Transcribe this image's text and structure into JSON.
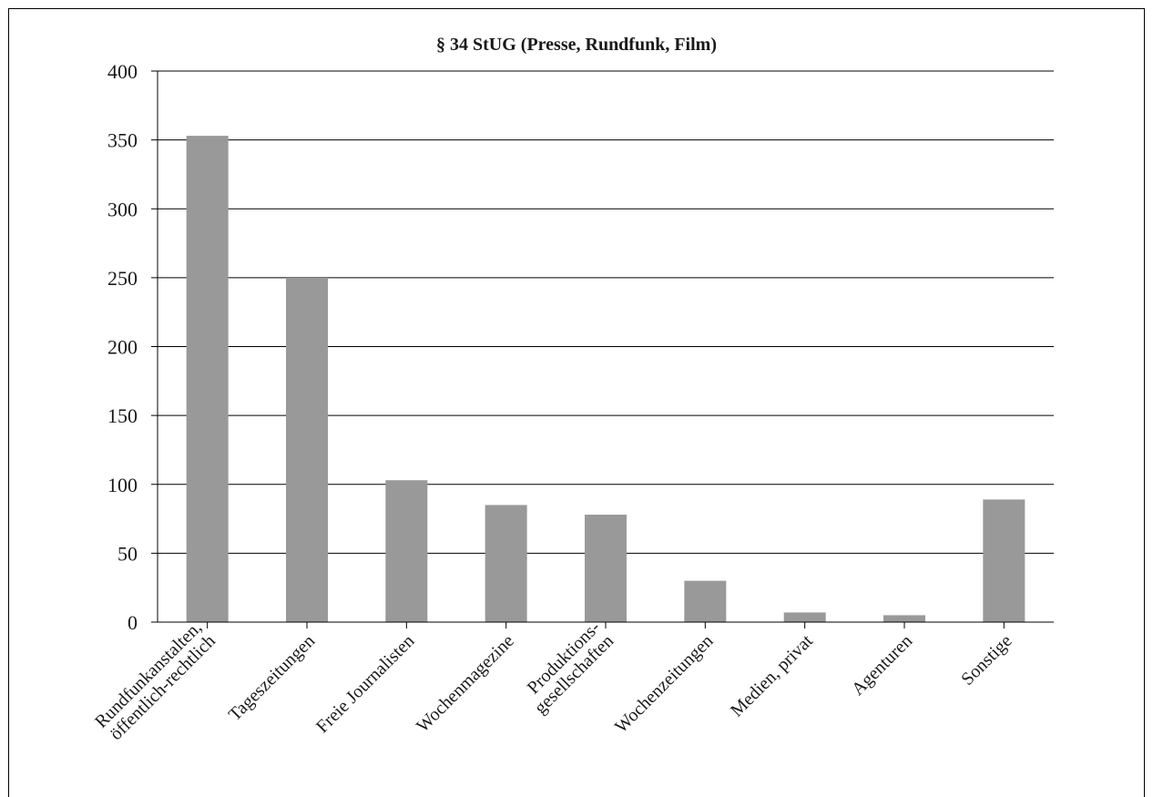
{
  "chart_data": {
    "type": "bar",
    "title": "§ 34 StUG (Presse, Rundfunk, Film)",
    "xlabel": "",
    "ylabel": "",
    "ylim": [
      0,
      400
    ],
    "yticks": [
      0,
      50,
      100,
      150,
      200,
      250,
      300,
      350,
      400
    ],
    "grid": true,
    "categories": [
      [
        "Rundfunkanstalten,",
        "öffentlich-rechtlich"
      ],
      [
        "Tageszeitungen"
      ],
      [
        "Freie Journalisten"
      ],
      [
        "Wochenmagezine"
      ],
      [
        "Produktions-",
        "gesellschaften"
      ],
      [
        "Wochenzeitungen"
      ],
      [
        "Medien, privat"
      ],
      [
        "Agenturen"
      ],
      [
        "Sonstige"
      ]
    ],
    "values": [
      353,
      250,
      103,
      85,
      78,
      30,
      7,
      5,
      89
    ],
    "bar_color": "#999999"
  }
}
